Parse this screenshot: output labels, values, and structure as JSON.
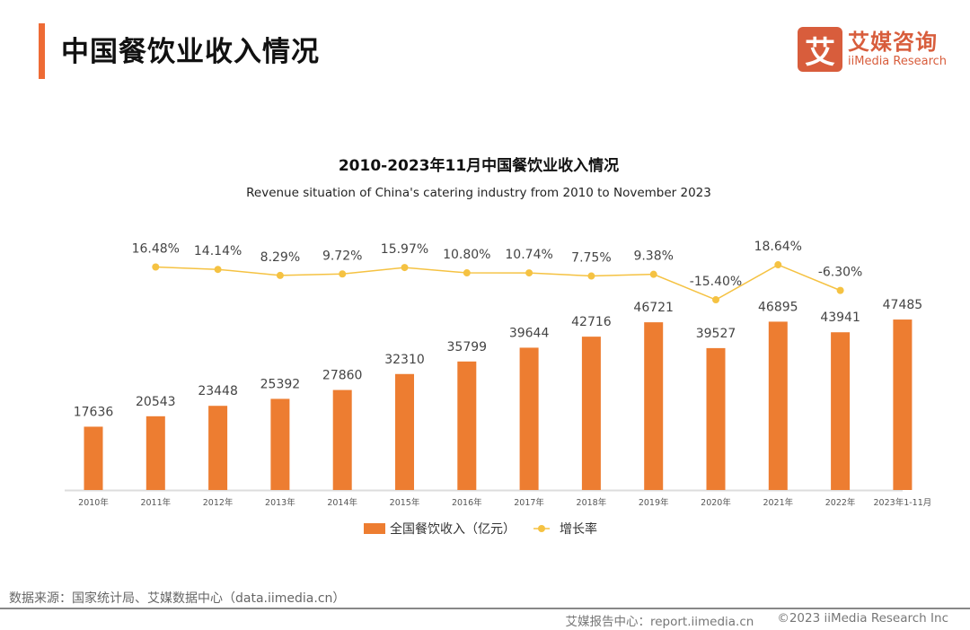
{
  "header": {
    "title": "中国餐饮业收入情况",
    "logo_cn": "艾媒咨询",
    "logo_en": "iiMedia Research",
    "logo_mark": "艾"
  },
  "colors": {
    "bar": "#ed7d31",
    "line": "#f5c242",
    "accent": "#ee6b35",
    "logo": "#d85d3c"
  },
  "chart_data": {
    "type": "bar+line",
    "title": "2010-2023年11月中国餐饮业收入情况",
    "subtitle": "Revenue situation of China's catering industry from 2010 to November 2023",
    "categories": [
      "2010年",
      "2011年",
      "2012年",
      "2013年",
      "2014年",
      "2015年",
      "2016年",
      "2017年",
      "2018年",
      "2019年",
      "2020年",
      "2021年",
      "2022年",
      "2023年1-11月"
    ],
    "series": [
      {
        "name": "全国餐饮收入（亿元）",
        "type": "bar",
        "values": [
          17636,
          20543,
          23448,
          25392,
          27860,
          32310,
          35799,
          39644,
          42716,
          46721,
          39527,
          46895,
          43941,
          47485
        ],
        "labels": [
          "17636",
          "20543",
          "23448",
          "25392",
          "27860",
          "32310",
          "35799",
          "39644",
          "42716",
          "46721",
          "39527",
          "46895",
          "43941",
          "47485"
        ]
      },
      {
        "name": "增长率",
        "type": "line",
        "values": [
          null,
          16.48,
          14.14,
          8.29,
          9.72,
          15.97,
          10.8,
          10.74,
          7.75,
          9.38,
          -15.4,
          18.64,
          -6.3,
          null
        ],
        "labels": [
          "",
          "16.48%",
          "14.14%",
          "8.29%",
          "9.72%",
          "15.97%",
          "10.80%",
          "10.74%",
          "7.75%",
          "9.38%",
          "-15.40%",
          "18.64%",
          "-6.30%",
          ""
        ]
      }
    ],
    "legend": "bottom",
    "grid": false
  },
  "footer": {
    "source": "数据来源：国家统计局、艾媒数据中心（data.iimedia.cn）",
    "report": "艾媒报告中心：report.iimedia.cn",
    "copyright": "©2023  iiMedia Research Inc"
  }
}
